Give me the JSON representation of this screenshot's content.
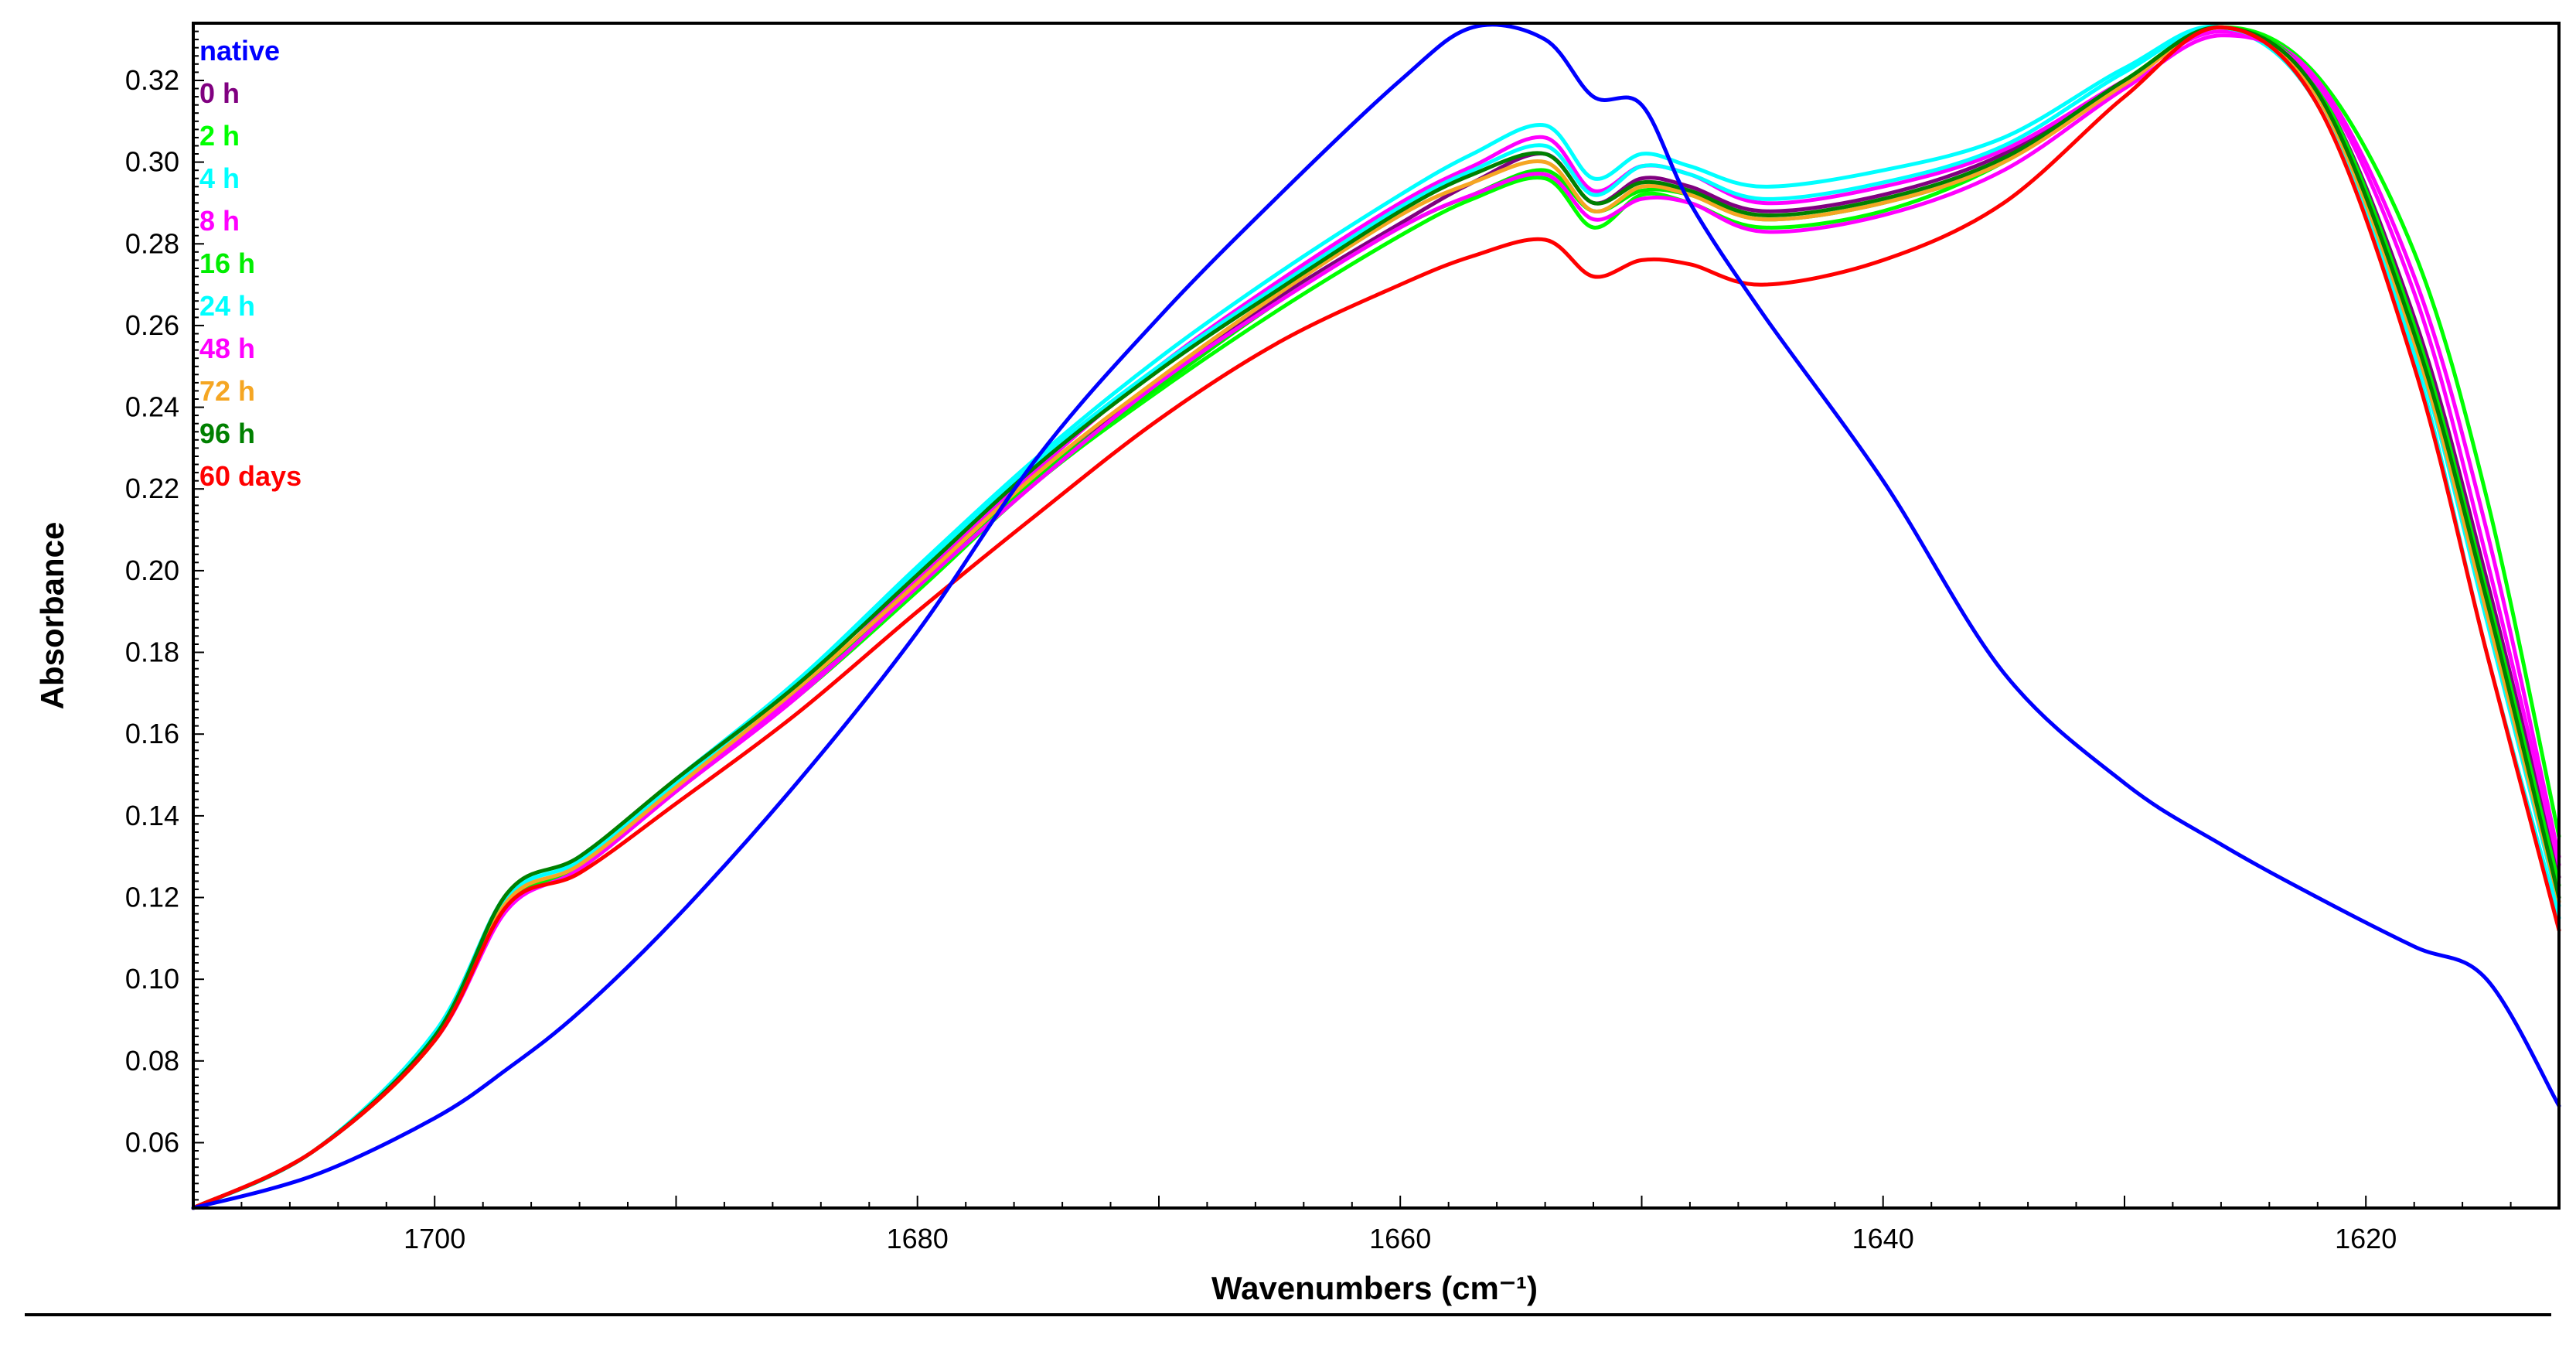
{
  "chart_data": {
    "type": "line",
    "title": "",
    "xlabel": "Wavenumbers (cm⁻¹)",
    "ylabel": "Absorbance",
    "xlim": [
      1710,
      1612
    ],
    "ylim": [
      0.044,
      0.334
    ],
    "x_ticks": [
      "1700",
      "1680",
      "1660",
      "1640",
      "1620"
    ],
    "y_ticks": [
      "0.06",
      "0.08",
      "0.10",
      "0.12",
      "0.14",
      "0.16",
      "0.18",
      "0.20",
      "0.22",
      "0.24",
      "0.26",
      "0.28",
      "0.30",
      "0.32"
    ],
    "grid": false,
    "legend_position": "top-left",
    "x": [
      1710,
      1705,
      1700,
      1697,
      1694,
      1690,
      1685,
      1680,
      1675,
      1670,
      1665,
      1660,
      1657,
      1654,
      1652,
      1650,
      1648,
      1645,
      1640,
      1635,
      1630,
      1626,
      1622,
      1618,
      1615,
      1612
    ],
    "series": [
      {
        "name": "native",
        "color": "#0000FF",
        "values": [
          0.044,
          0.052,
          0.066,
          0.078,
          0.092,
          0.115,
          0.148,
          0.185,
          0.228,
          0.262,
          0.292,
          0.32,
          0.333,
          0.33,
          0.316,
          0.314,
          0.29,
          0.263,
          0.222,
          0.175,
          0.148,
          0.133,
          0.12,
          0.108,
          0.1,
          0.069
        ]
      },
      {
        "name": "0 h",
        "color": "#800080",
        "values": [
          0.044,
          0.058,
          0.085,
          0.118,
          0.127,
          0.146,
          0.17,
          0.197,
          0.224,
          0.246,
          0.267,
          0.285,
          0.295,
          0.302,
          0.29,
          0.296,
          0.294,
          0.288,
          0.292,
          0.302,
          0.32,
          0.333,
          0.318,
          0.262,
          0.198,
          0.125
        ]
      },
      {
        "name": "2 h",
        "color": "#00FF00",
        "values": [
          0.044,
          0.058,
          0.085,
          0.118,
          0.127,
          0.146,
          0.169,
          0.195,
          0.222,
          0.244,
          0.264,
          0.282,
          0.291,
          0.296,
          0.284,
          0.292,
          0.29,
          0.284,
          0.288,
          0.3,
          0.32,
          0.333,
          0.321,
          0.278,
          0.218,
          0.135
        ]
      },
      {
        "name": "4 h",
        "color": "#00FFFF",
        "values": [
          0.044,
          0.058,
          0.087,
          0.121,
          0.13,
          0.149,
          0.173,
          0.201,
          0.228,
          0.252,
          0.273,
          0.292,
          0.302,
          0.309,
          0.296,
          0.302,
          0.299,
          0.294,
          0.298,
          0.306,
          0.323,
          0.333,
          0.314,
          0.252,
          0.18,
          0.115
        ]
      },
      {
        "name": "8 h",
        "color": "#FF00FF",
        "values": [
          0.044,
          0.058,
          0.085,
          0.118,
          0.127,
          0.146,
          0.17,
          0.198,
          0.225,
          0.25,
          0.271,
          0.29,
          0.299,
          0.306,
          0.293,
          0.299,
          0.297,
          0.29,
          0.294,
          0.303,
          0.32,
          0.332,
          0.32,
          0.272,
          0.21,
          0.13
        ]
      },
      {
        "name": "16 h",
        "color": "#00EE00",
        "values": [
          0.044,
          0.058,
          0.085,
          0.118,
          0.128,
          0.147,
          0.171,
          0.196,
          0.223,
          0.245,
          0.266,
          0.284,
          0.292,
          0.298,
          0.288,
          0.293,
          0.292,
          0.286,
          0.29,
          0.3,
          0.32,
          0.333,
          0.318,
          0.26,
          0.195,
          0.123
        ]
      },
      {
        "name": "24 h",
        "color": "#00FFFF",
        "values": [
          0.044,
          0.058,
          0.086,
          0.12,
          0.129,
          0.148,
          0.172,
          0.2,
          0.227,
          0.25,
          0.27,
          0.289,
          0.298,
          0.304,
          0.292,
          0.299,
          0.297,
          0.291,
          0.295,
          0.304,
          0.322,
          0.333,
          0.316,
          0.255,
          0.188,
          0.118
        ]
      },
      {
        "name": "48 h",
        "color": "#FF00FF",
        "values": [
          0.044,
          0.058,
          0.085,
          0.117,
          0.127,
          0.146,
          0.169,
          0.196,
          0.222,
          0.246,
          0.266,
          0.284,
          0.292,
          0.297,
          0.286,
          0.291,
          0.29,
          0.283,
          0.287,
          0.298,
          0.318,
          0.331,
          0.319,
          0.268,
          0.203,
          0.128
        ]
      },
      {
        "name": "72 h",
        "color": "#F5A623",
        "values": [
          0.044,
          0.058,
          0.085,
          0.119,
          0.128,
          0.147,
          0.171,
          0.197,
          0.224,
          0.247,
          0.268,
          0.287,
          0.295,
          0.3,
          0.288,
          0.294,
          0.292,
          0.286,
          0.29,
          0.3,
          0.319,
          0.333,
          0.316,
          0.256,
          0.19,
          0.119
        ]
      },
      {
        "name": "96 h",
        "color": "#008000",
        "values": [
          0.044,
          0.058,
          0.086,
          0.121,
          0.13,
          0.149,
          0.172,
          0.199,
          0.226,
          0.249,
          0.269,
          0.288,
          0.297,
          0.302,
          0.29,
          0.295,
          0.293,
          0.287,
          0.291,
          0.301,
          0.32,
          0.333,
          0.317,
          0.258,
          0.193,
          0.12
        ]
      },
      {
        "name": "60 days",
        "color": "#FF0000",
        "values": [
          0.044,
          0.058,
          0.085,
          0.118,
          0.126,
          0.143,
          0.165,
          0.19,
          0.214,
          0.237,
          0.256,
          0.27,
          0.277,
          0.281,
          0.272,
          0.276,
          0.275,
          0.27,
          0.276,
          0.29,
          0.316,
          0.333,
          0.314,
          0.25,
          0.18,
          0.112
        ]
      }
    ]
  }
}
